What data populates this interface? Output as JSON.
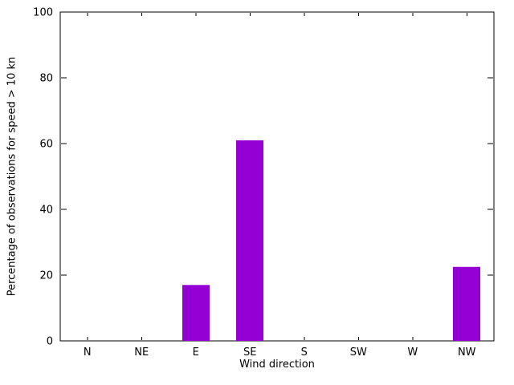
{
  "chart_data": {
    "type": "bar",
    "title": "",
    "xlabel": "Wind direction",
    "ylabel": "Percentage of observations for speed > 10 kn",
    "categories": [
      "N",
      "NE",
      "E",
      "SE",
      "S",
      "SW",
      "W",
      "NW"
    ],
    "values": [
      0,
      0,
      17,
      61,
      0,
      0,
      0,
      22.5
    ],
    "ylim": [
      0,
      100
    ],
    "yticks": [
      0,
      20,
      40,
      60,
      80,
      100
    ],
    "bar_color": "#9400d3",
    "axis_color": "#000000",
    "background": "#ffffff",
    "grid": false,
    "legend": "none"
  }
}
